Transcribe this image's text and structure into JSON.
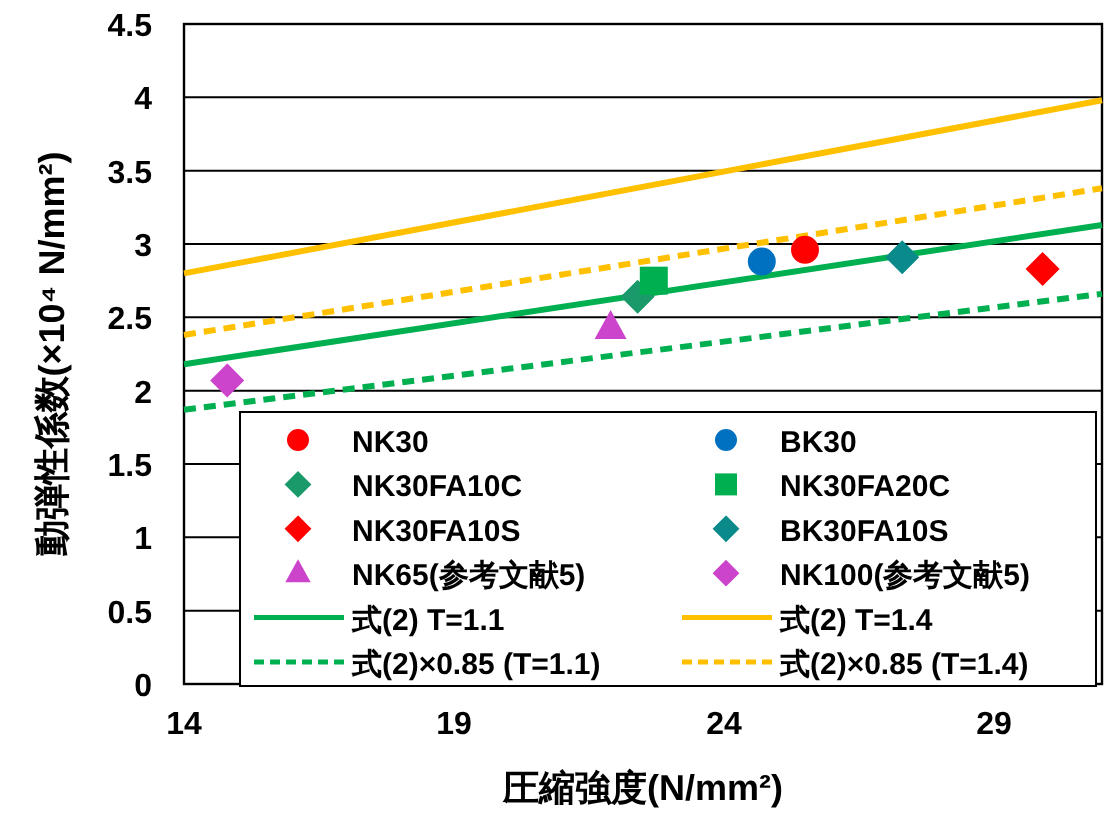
{
  "chart_data": {
    "type": "scatter",
    "xlabel": "圧縮強度(N/mm²)",
    "ylabel": "動弾性係数(×10⁴ N/mm²)",
    "xlim": [
      14,
      31
    ],
    "xticks": [
      14,
      19,
      24,
      29
    ],
    "ylim": [
      0,
      4.5
    ],
    "yticks": [
      0,
      0.5,
      1,
      1.5,
      2,
      2.5,
      3,
      3.5,
      4,
      4.5
    ],
    "grid": "y",
    "legend": "bottom",
    "series": [
      {
        "name": "NK30",
        "marker": "circle",
        "color": "#ff0000",
        "x": [
          25.5
        ],
        "values": [
          2.96
        ]
      },
      {
        "name": "BK30",
        "marker": "circle",
        "color": "#0070c0",
        "x": [
          24.7
        ],
        "values": [
          2.88
        ]
      },
      {
        "name": "NK30FA10C",
        "marker": "diamond",
        "color": "#1a9a6a",
        "x": [
          22.4
        ],
        "values": [
          2.64
        ]
      },
      {
        "name": "NK30FA20C",
        "marker": "square",
        "color": "#00b050",
        "x": [
          22.7
        ],
        "values": [
          2.75
        ]
      },
      {
        "name": "NK30FA10S",
        "marker": "diamond",
        "color": "#ff0000",
        "x": [
          29.9
        ],
        "values": [
          2.83
        ]
      },
      {
        "name": "BK30FA10S",
        "marker": "diamond",
        "color": "#0a8a8a",
        "x": [
          27.3
        ],
        "values": [
          2.91
        ]
      },
      {
        "name": "NK65(参考文献5)",
        "marker": "triangle",
        "color": "#cc44cc",
        "x": [
          21.9
        ],
        "values": [
          2.43
        ]
      },
      {
        "name": "NK100(参考文献5)",
        "marker": "diamond",
        "color": "#cc44cc",
        "x": [
          14.8
        ],
        "values": [
          2.07
        ]
      },
      {
        "name": "式(2) T=1.1",
        "type": "line",
        "line_style": "solid",
        "color": "#00b050",
        "x": [
          14,
          31
        ],
        "values": [
          2.18,
          3.13
        ]
      },
      {
        "name": "式(2) T=1.4",
        "type": "line",
        "line_style": "solid",
        "color": "#ffc000",
        "x": [
          14,
          31
        ],
        "values": [
          2.8,
          3.98
        ]
      },
      {
        "name": "式(2)×0.85 (T=1.1)",
        "type": "line",
        "line_style": "dashed",
        "color": "#00b050",
        "x": [
          14,
          31
        ],
        "values": [
          1.87,
          2.66
        ]
      },
      {
        "name": "式(2)×0.85 (T=1.4)",
        "type": "line",
        "line_style": "dashed",
        "color": "#ffc000",
        "x": [
          14,
          31
        ],
        "values": [
          2.38,
          3.38
        ]
      }
    ]
  }
}
